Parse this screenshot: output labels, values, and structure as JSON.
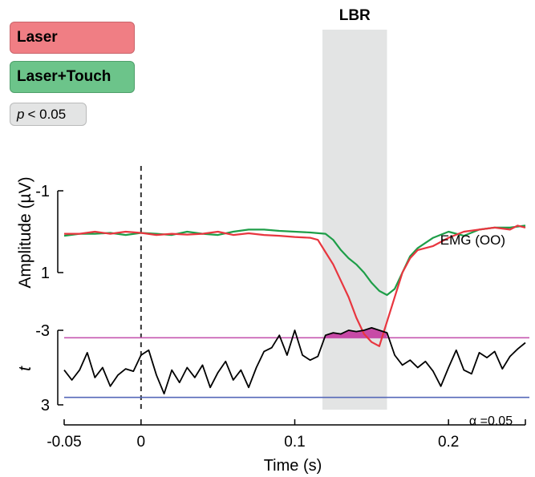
{
  "chart_data": [
    {
      "type": "line",
      "panel": "emg",
      "ylabel": "Amplitude (µV)",
      "yticks": [
        "-1",
        "1"
      ],
      "ylim_inverted": [
        -1,
        1
      ],
      "annotation": "EMG (OO)",
      "highlight": {
        "label": "LBR",
        "x_start": 0.118,
        "x_end": 0.16
      },
      "stimulus_x": 0,
      "series": [
        {
          "name": "Laser",
          "color": "#e8363f",
          "x": [
            -0.05,
            -0.04,
            -0.03,
            -0.02,
            -0.01,
            0,
            0.01,
            0.02,
            0.03,
            0.04,
            0.05,
            0.06,
            0.07,
            0.08,
            0.09,
            0.1,
            0.11,
            0.115,
            0.12,
            0.125,
            0.13,
            0.135,
            0.14,
            0.145,
            0.15,
            0.155,
            0.16,
            0.165,
            0.17,
            0.175,
            0.18,
            0.19,
            0.2,
            0.21,
            0.22,
            0.23,
            0.24,
            0.245,
            0.25
          ],
          "y": [
            0.05,
            0.05,
            0.0,
            0.05,
            0.0,
            0.03,
            0.08,
            0.05,
            0.07,
            0.05,
            0.0,
            0.08,
            0.04,
            0.08,
            0.1,
            0.13,
            0.15,
            0.2,
            0.5,
            0.8,
            1.2,
            1.6,
            2.1,
            2.5,
            2.7,
            2.8,
            2.2,
            1.6,
            1.0,
            0.65,
            0.45,
            0.35,
            0.15,
            0.0,
            -0.05,
            -0.1,
            -0.05,
            -0.15,
            -0.1
          ]
        },
        {
          "name": "Laser+Touch",
          "color": "#1e9e48",
          "x": [
            -0.05,
            -0.04,
            -0.03,
            -0.02,
            -0.01,
            0,
            0.01,
            0.02,
            0.03,
            0.04,
            0.05,
            0.06,
            0.07,
            0.08,
            0.09,
            0.1,
            0.11,
            0.12,
            0.125,
            0.13,
            0.135,
            0.14,
            0.145,
            0.15,
            0.155,
            0.16,
            0.165,
            0.17,
            0.175,
            0.18,
            0.19,
            0.2,
            0.21,
            0.22,
            0.23,
            0.24,
            0.25
          ],
          "y": [
            0.1,
            0.05,
            0.05,
            0.03,
            0.08,
            0.03,
            0.05,
            0.08,
            0.0,
            0.05,
            0.08,
            0.0,
            -0.05,
            -0.05,
            -0.02,
            0.0,
            0.02,
            0.05,
            0.2,
            0.45,
            0.65,
            0.8,
            1.0,
            1.25,
            1.45,
            1.55,
            1.4,
            1.0,
            0.6,
            0.4,
            0.15,
            0.0,
            0.1,
            -0.05,
            -0.1,
            -0.1,
            -0.15
          ]
        }
      ]
    },
    {
      "type": "line",
      "panel": "t-statistic",
      "ylabel": "t",
      "yticks": [
        "-3",
        "3"
      ],
      "ylim_inverted": [
        -3,
        3
      ],
      "thresholds": [
        {
          "name": "upper",
          "value": -2.4,
          "color": "#c657b0"
        },
        {
          "name": "lower",
          "value": 2.4,
          "color": "#5568b8",
          "label": "α =0.05"
        }
      ],
      "significant_fill_color": "#c74aa6",
      "series": [
        {
          "name": "t",
          "color": "#000000",
          "x": [
            -0.05,
            -0.045,
            -0.04,
            -0.035,
            -0.03,
            -0.025,
            -0.02,
            -0.015,
            -0.01,
            -0.005,
            0,
            0.005,
            0.01,
            0.015,
            0.02,
            0.025,
            0.03,
            0.035,
            0.04,
            0.045,
            0.05,
            0.055,
            0.06,
            0.065,
            0.07,
            0.075,
            0.08,
            0.085,
            0.09,
            0.095,
            0.1,
            0.105,
            0.11,
            0.115,
            0.12,
            0.125,
            0.13,
            0.135,
            0.14,
            0.145,
            0.15,
            0.155,
            0.16,
            0.165,
            0.17,
            0.175,
            0.18,
            0.185,
            0.19,
            0.195,
            0.2,
            0.205,
            0.21,
            0.215,
            0.22,
            0.225,
            0.23,
            0.235,
            0.24,
            0.245,
            0.25
          ],
          "y": [
            0.2,
            1.0,
            0.2,
            -1.2,
            0.8,
            0.0,
            1.5,
            0.6,
            0.1,
            0.3,
            -1.0,
            -1.4,
            0.6,
            2.1,
            0.2,
            1.2,
            0.0,
            0.8,
            -0.2,
            1.6,
            0.4,
            -0.5,
            1.0,
            0.2,
            1.6,
            0.0,
            -1.3,
            -1.6,
            -2.6,
            -1.0,
            -3.0,
            -1.0,
            -0.6,
            -0.9,
            -2.6,
            -2.8,
            -2.7,
            -3.0,
            -2.9,
            -3.0,
            -3.2,
            -3.0,
            -2.8,
            -1.0,
            -0.2,
            -0.6,
            0.0,
            -0.5,
            0.3,
            1.5,
            0.0,
            -1.4,
            0.2,
            0.5,
            -1.2,
            -0.8,
            -1.3,
            0.1,
            -0.9,
            -1.5,
            -2.0
          ]
        }
      ]
    }
  ],
  "xaxis": {
    "label": "Time (s)",
    "xlim": [
      -0.05,
      0.25
    ],
    "ticks": [
      {
        "value": -0.05,
        "label": "-0.05"
      },
      {
        "value": 0,
        "label": "0"
      },
      {
        "value": 0.1,
        "label": "0.1"
      },
      {
        "value": 0.2,
        "label": "0.2"
      }
    ]
  },
  "legend": {
    "laser": "Laser",
    "laser_touch": "Laser+Touch",
    "p_symbol": "p",
    "p_text": "< 0.05"
  }
}
